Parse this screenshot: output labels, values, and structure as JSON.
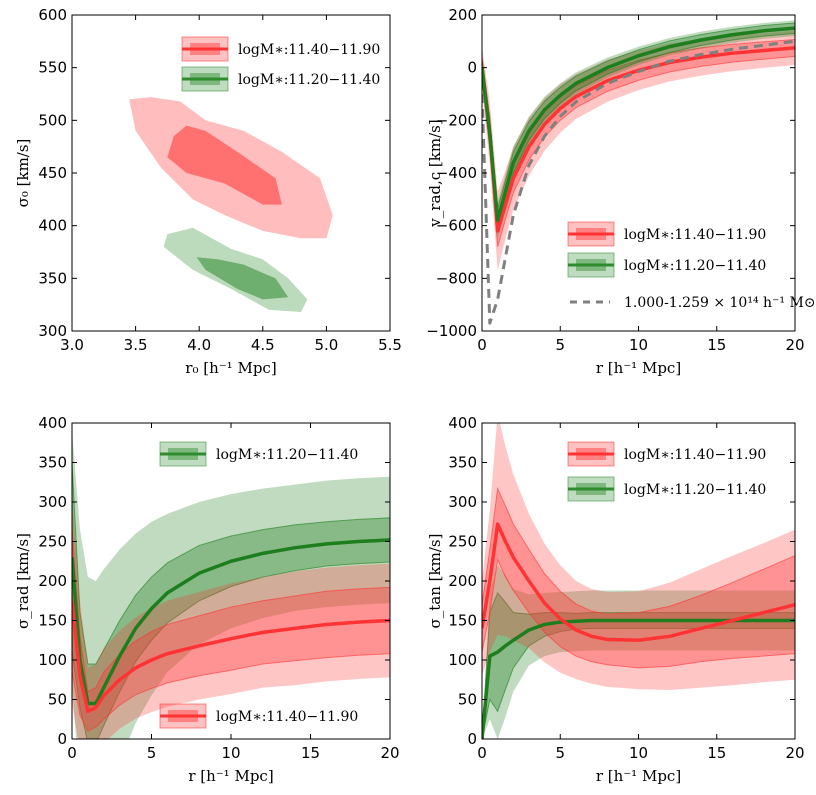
{
  "chart_data": [
    {
      "type": "contour",
      "panel": "top-left",
      "xlabel": "r₀ [h⁻¹ Mpc]",
      "ylabel": "σ₀ [km/s]",
      "xlim": [
        3.0,
        5.5
      ],
      "ylim": [
        300,
        600
      ],
      "xticks": [
        "3.0",
        "3.5",
        "4.0",
        "4.5",
        "5.0",
        "5.5"
      ],
      "yticks": [
        "300",
        "350",
        "400",
        "450",
        "500",
        "550",
        "600"
      ],
      "legend": [
        {
          "label": "logM∗:11.40−11.90",
          "color": "#ff3333"
        },
        {
          "label": "logM∗:11.20−11.40",
          "color": "#2e8b2e"
        }
      ],
      "series": [
        {
          "name": "red",
          "color": "#ff3333",
          "outer": [
            [
              3.45,
              520
            ],
            [
              3.62,
              522
            ],
            [
              3.85,
              518
            ],
            [
              4.05,
              500
            ],
            [
              4.35,
              490
            ],
            [
              4.65,
              470
            ],
            [
              4.95,
              445
            ],
            [
              5.05,
              410
            ],
            [
              5.0,
              388
            ],
            [
              4.8,
              388
            ],
            [
              4.5,
              395
            ],
            [
              4.2,
              410
            ],
            [
              3.95,
              425
            ],
            [
              3.7,
              455
            ],
            [
              3.5,
              490
            ]
          ],
          "inner": [
            [
              3.9,
              495
            ],
            [
              4.05,
              490
            ],
            [
              4.3,
              470
            ],
            [
              4.6,
              445
            ],
            [
              4.65,
              420
            ],
            [
              4.5,
              420
            ],
            [
              4.2,
              440
            ],
            [
              3.9,
              450
            ],
            [
              3.75,
              465
            ],
            [
              3.8,
              485
            ]
          ]
        },
        {
          "name": "green",
          "color": "#2e8b2e",
          "outer": [
            [
              3.75,
              392
            ],
            [
              3.95,
              398
            ],
            [
              4.25,
              378
            ],
            [
              4.5,
              368
            ],
            [
              4.7,
              350
            ],
            [
              4.85,
              330
            ],
            [
              4.8,
              318
            ],
            [
              4.55,
              320
            ],
            [
              4.25,
              340
            ],
            [
              3.95,
              358
            ],
            [
              3.72,
              380
            ]
          ],
          "inner": [
            [
              3.98,
              370
            ],
            [
              4.15,
              368
            ],
            [
              4.35,
              363
            ],
            [
              4.6,
              350
            ],
            [
              4.7,
              332
            ],
            [
              4.5,
              330
            ],
            [
              4.3,
              340
            ],
            [
              4.05,
              358
            ]
          ]
        }
      ]
    },
    {
      "type": "line",
      "panel": "top-right",
      "xlabel": "r [h⁻¹ Mpc]",
      "ylabel": "v_rad,c [km/s]",
      "xlim": [
        0,
        20
      ],
      "ylim": [
        -1000,
        200
      ],
      "xticks": [
        "0",
        "5",
        "10",
        "15",
        "20"
      ],
      "yticks": [
        "−1000",
        "−800",
        "−600",
        "−400",
        "−200",
        "0",
        "200"
      ],
      "legend": [
        {
          "label": "logM∗:11.40−11.90",
          "color": "#ff3333"
        },
        {
          "label": "logM∗:11.20−11.40",
          "color": "#2e8b2e"
        },
        {
          "label": "1.000-1.259 × 10¹⁴ h⁻¹ M⊙",
          "color": "#808080"
        }
      ],
      "x": [
        0,
        0.5,
        1,
        1.5,
        2,
        3,
        4,
        5,
        6,
        8,
        10,
        12,
        14,
        16,
        18,
        20
      ],
      "series": [
        {
          "name": "red",
          "color": "#ff3333",
          "median": [
            0,
            -250,
            -620,
            -520,
            -420,
            -300,
            -215,
            -155,
            -110,
            -50,
            -10,
            20,
            40,
            55,
            65,
            75
          ],
          "band1": [
            40,
            60,
            60,
            55,
            55,
            50,
            48,
            45,
            42,
            40,
            38,
            36,
            35,
            34,
            33,
            32
          ],
          "band2": [
            80,
            120,
            150,
            130,
            120,
            110,
            100,
            92,
            85,
            80,
            75,
            72,
            70,
            68,
            66,
            65
          ]
        },
        {
          "name": "green",
          "color": "#1e7e1e",
          "median": [
            0,
            -250,
            -580,
            -470,
            -360,
            -240,
            -160,
            -105,
            -60,
            0,
            45,
            80,
            105,
            125,
            140,
            150
          ],
          "band1": [
            30,
            45,
            45,
            42,
            40,
            36,
            33,
            30,
            28,
            25,
            23,
            22,
            21,
            20,
            20,
            20
          ],
          "band2": [
            50,
            70,
            70,
            65,
            60,
            55,
            50,
            46,
            42,
            38,
            35,
            33,
            32,
            31,
            30,
            30
          ]
        },
        {
          "name": "halo",
          "color": "#808080",
          "dashed": true,
          "median": [
            -100,
            -970,
            -880,
            -720,
            -560,
            -370,
            -260,
            -185,
            -130,
            -60,
            -15,
            25,
            50,
            70,
            85,
            100
          ]
        }
      ]
    },
    {
      "type": "line",
      "panel": "bottom-left",
      "xlabel": "r [h⁻¹ Mpc]",
      "ylabel": "σ_rad [km/s]",
      "xlim": [
        0,
        20
      ],
      "ylim": [
        0,
        400
      ],
      "xticks": [
        "0",
        "5",
        "10",
        "15",
        "20"
      ],
      "yticks": [
        "0",
        "50",
        "100",
        "150",
        "200",
        "250",
        "300",
        "350",
        "400"
      ],
      "legend": [
        {
          "label": "logM∗:11.20−11.40",
          "color": "#2e8b2e"
        },
        {
          "label": "logM∗:11.40−11.90",
          "color": "#ff3333"
        }
      ],
      "x": [
        0,
        0.5,
        1,
        1.5,
        2,
        3,
        4,
        5,
        6,
        8,
        10,
        12,
        14,
        16,
        18,
        20
      ],
      "series": [
        {
          "name": "green",
          "color": "#1e7e1e",
          "median": [
            230,
            100,
            45,
            45,
            65,
            105,
            140,
            165,
            185,
            210,
            225,
            235,
            242,
            247,
            250,
            252
          ],
          "band1": [
            120,
            60,
            50,
            50,
            48,
            45,
            42,
            40,
            38,
            35,
            32,
            30,
            29,
            28,
            28,
            28
          ],
          "band2": [
            160,
            165,
            160,
            155,
            150,
            135,
            120,
            110,
            100,
            90,
            85,
            82,
            80,
            80,
            80,
            80
          ]
        },
        {
          "name": "red",
          "color": "#ff3333",
          "median": [
            175,
            80,
            35,
            40,
            55,
            75,
            90,
            100,
            108,
            118,
            127,
            135,
            140,
            145,
            148,
            150
          ],
          "band1": [
            90,
            50,
            25,
            25,
            30,
            32,
            34,
            36,
            37,
            38,
            40,
            40,
            41,
            42,
            42,
            42
          ],
          "band2": [
            130,
            95,
            55,
            55,
            60,
            62,
            64,
            66,
            67,
            68,
            70,
            70,
            72,
            72,
            72,
            72
          ]
        }
      ]
    },
    {
      "type": "line",
      "panel": "bottom-right",
      "xlabel": "r [h⁻¹ Mpc]",
      "ylabel": "σ_tan [km/s]",
      "xlim": [
        0,
        20
      ],
      "ylim": [
        0,
        400
      ],
      "xticks": [
        "0",
        "5",
        "10",
        "15",
        "20"
      ],
      "yticks": [
        "0",
        "50",
        "100",
        "150",
        "200",
        "250",
        "300",
        "350",
        "400"
      ],
      "legend": [
        {
          "label": "logM∗:11.40−11.90",
          "color": "#ff3333"
        },
        {
          "label": "logM∗:11.20−11.40",
          "color": "#2e8b2e"
        }
      ],
      "x": [
        0,
        0.5,
        1,
        1.5,
        2,
        3,
        4,
        5,
        6,
        7,
        8,
        10,
        12,
        14,
        16,
        18,
        20
      ],
      "series": [
        {
          "name": "green",
          "color": "#1e7e1e",
          "median": [
            0,
            105,
            110,
            118,
            125,
            138,
            145,
            148,
            149,
            150,
            150,
            150,
            150,
            150,
            150,
            150,
            150
          ],
          "band1": [
            0,
            55,
            75,
            55,
            35,
            20,
            15,
            12,
            10,
            10,
            10,
            10,
            10,
            10,
            10,
            10,
            10
          ],
          "band2": [
            0,
            80,
            110,
            90,
            65,
            45,
            40,
            38,
            38,
            38,
            38,
            38,
            38,
            38,
            38,
            38,
            38
          ]
        },
        {
          "name": "red",
          "color": "#ff3333",
          "median": [
            140,
            200,
            272,
            250,
            230,
            200,
            172,
            152,
            138,
            130,
            126,
            125,
            130,
            140,
            150,
            160,
            170
          ],
          "band1": [
            30,
            40,
            45,
            45,
            42,
            40,
            37,
            35,
            33,
            32,
            32,
            35,
            38,
            42,
            48,
            55,
            62
          ],
          "band2": [
            60,
            90,
            140,
            120,
            105,
            85,
            75,
            68,
            62,
            60,
            60,
            62,
            68,
            75,
            82,
            88,
            95
          ]
        }
      ]
    }
  ]
}
